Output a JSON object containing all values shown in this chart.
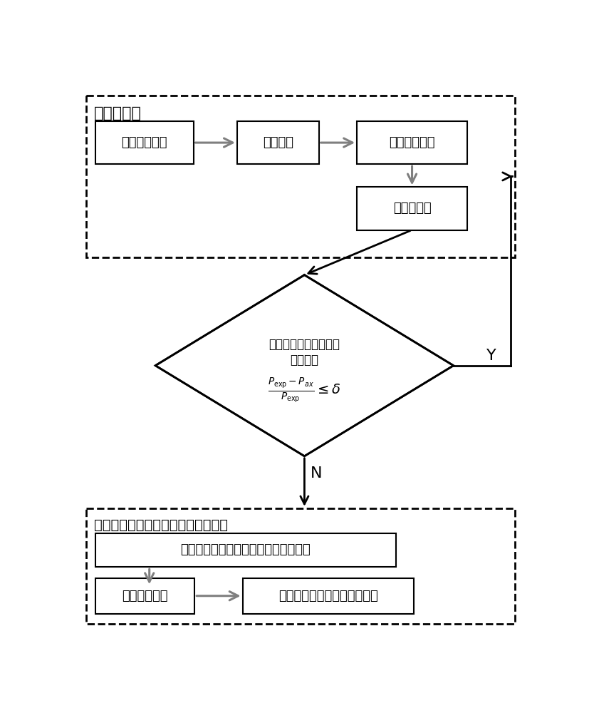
{
  "bg_color": "#ffffff",
  "gray": "#7f7f7f",
  "black": "#000000",
  "top_section_label": "功率值预测",
  "box1_text": "采集实时功率",
  "box2_text": "数据处理",
  "box3_text": "输入神经网络",
  "box4_text": "功率值预测",
  "diamond_line1": "计算功率偏差率，判断",
  "diamond_line2": "是否调速",
  "Y_label": "Y",
  "N_label": "N",
  "bottom_section_label": "预测背吃刀量，对进给系统调速控制",
  "box5_text": "根据背吃刀量与预测功率二次函数关系",
  "box6_text": "预测被吃刀量",
  "box7_text": "结合预设功率，实现调速控制"
}
